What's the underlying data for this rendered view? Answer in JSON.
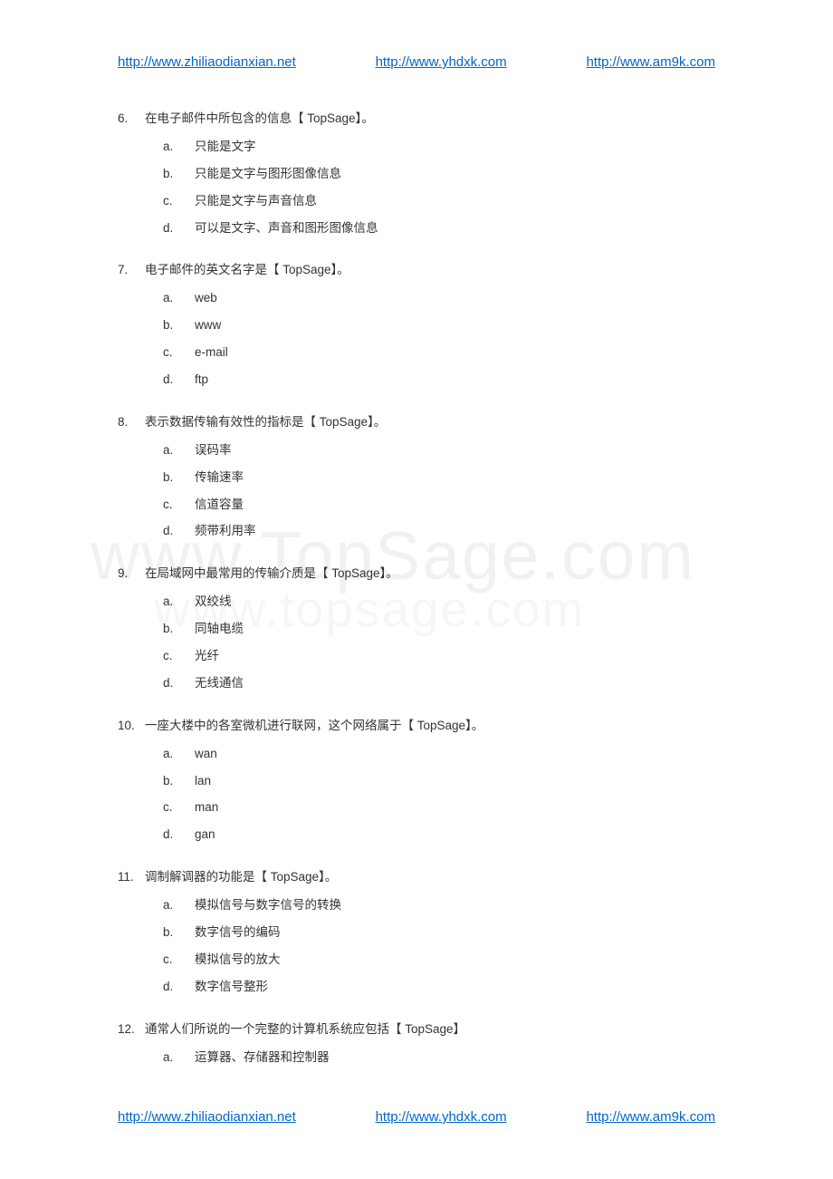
{
  "header": {
    "link1": "http://www.zhiliaodianxian.net",
    "link2": "http://www.yhdxk.com",
    "link3": "http://www.am9k.com"
  },
  "footer": {
    "link1": "http://www.zhiliaodianxian.net",
    "link2": "http://www.yhdxk.com",
    "link3": "http://www.am9k.com"
  },
  "watermark": {
    "text1": "www.TopSage.com",
    "text2": "www.topsage.com"
  },
  "questions": [
    {
      "num": "6.",
      "text": "在电子邮件中所包含的信息【    TopSage】。",
      "options": [
        {
          "letter": "a.",
          "text": "只能是文字"
        },
        {
          "letter": "b.",
          "text": "只能是文字与图形图像信息"
        },
        {
          "letter": "c.",
          "text": "只能是文字与声音信息"
        },
        {
          "letter": "d.",
          "text": "可以是文字、声音和图形图像信息"
        }
      ]
    },
    {
      "num": "7.",
      "text": "电子邮件的英文名字是【    TopSage】。",
      "options": [
        {
          "letter": "a.",
          "text": "web"
        },
        {
          "letter": "b.",
          "text": "www"
        },
        {
          "letter": "c.",
          "text": "e-mail"
        },
        {
          "letter": "d.",
          "text": "ftp"
        }
      ]
    },
    {
      "num": "8.",
      "text": "表示数据传输有效性的指标是【    TopSage】。",
      "options": [
        {
          "letter": "a.",
          "text": "误码率"
        },
        {
          "letter": "b.",
          "text": "传输速率"
        },
        {
          "letter": "c.",
          "text": "信道容量"
        },
        {
          "letter": "d.",
          "text": "频带利用率"
        }
      ]
    },
    {
      "num": "9.",
      "text": "在局域网中最常用的传输介质是【    TopSage】。",
      "options": [
        {
          "letter": "a.",
          "text": "双绞线"
        },
        {
          "letter": "b.",
          "text": "同轴电缆"
        },
        {
          "letter": "c.",
          "text": "光纤"
        },
        {
          "letter": "d.",
          "text": "无线通信"
        }
      ]
    },
    {
      "num": "10.",
      "text": "一座大楼中的各室微机进行联网，这个网络属于【    TopSage】。",
      "options": [
        {
          "letter": "a.",
          "text": "wan"
        },
        {
          "letter": "b.",
          "text": "lan"
        },
        {
          "letter": "c.",
          "text": "man"
        },
        {
          "letter": "d.",
          "text": "gan"
        }
      ]
    },
    {
      "num": "11.",
      "text": "调制解调器的功能是【    TopSage】。",
      "options": [
        {
          "letter": "a.",
          "text": "模拟信号与数字信号的转换"
        },
        {
          "letter": "b.",
          "text": "数字信号的编码"
        },
        {
          "letter": "c.",
          "text": "模拟信号的放大"
        },
        {
          "letter": "d.",
          "text": "数字信号整形"
        }
      ]
    },
    {
      "num": "12.",
      "text": "通常人们所说的一个完整的计算机系统应包括【    TopSage】",
      "options": [
        {
          "letter": "a.",
          "text": "运算器、存储器和控制器"
        }
      ]
    }
  ]
}
